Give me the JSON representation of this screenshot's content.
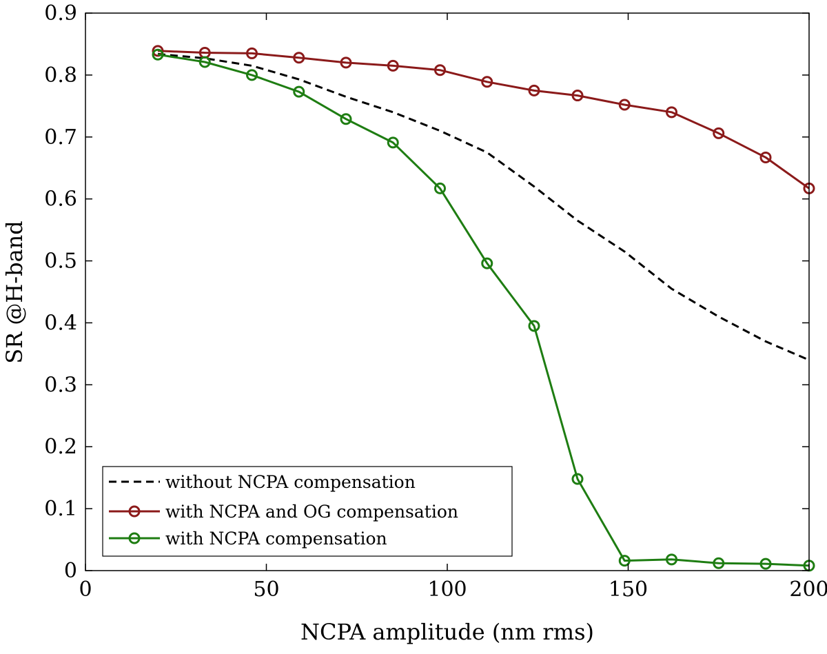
{
  "chart_data": {
    "type": "line",
    "title": "",
    "xlabel": "NCPA amplitude (nm rms)",
    "ylabel": "SR @H-band",
    "xlim": [
      0,
      200
    ],
    "ylim": [
      0,
      0.9
    ],
    "xticks": [
      0,
      50,
      100,
      150,
      200
    ],
    "yticks": [
      0,
      0.1,
      0.2,
      0.3,
      0.4,
      0.5,
      0.6,
      0.7,
      0.8,
      0.9
    ],
    "xtick_labels": [
      "0",
      "50",
      "100",
      "150",
      "200"
    ],
    "ytick_labels": [
      "0",
      "0.1",
      "0.2",
      "0.3",
      "0.4",
      "0.5",
      "0.6",
      "0.7",
      "0.8",
      "0.9"
    ],
    "grid": false,
    "legend_position": "bottom-left",
    "series": [
      {
        "name": "without NCPA compensation",
        "color": "#000000",
        "style": "dashed",
        "marker": "none",
        "x": [
          20,
          33,
          46,
          59,
          72,
          85,
          98,
          111,
          124,
          136,
          149,
          162,
          175,
          188,
          200
        ],
        "y": [
          0.834,
          0.827,
          0.815,
          0.793,
          0.765,
          0.74,
          0.71,
          0.675,
          0.62,
          0.565,
          0.515,
          0.455,
          0.41,
          0.37,
          0.34
        ]
      },
      {
        "name": "with NCPA and OG compensation",
        "color": "#8b1a1a",
        "style": "solid",
        "marker": "circle",
        "x": [
          20,
          33,
          46,
          59,
          72,
          85,
          98,
          111,
          124,
          136,
          149,
          162,
          175,
          188,
          200
        ],
        "y": [
          0.839,
          0.836,
          0.835,
          0.828,
          0.82,
          0.815,
          0.808,
          0.789,
          0.775,
          0.767,
          0.752,
          0.74,
          0.706,
          0.667,
          0.617
        ]
      },
      {
        "name": "with NCPA compensation",
        "color": "#1e7d12",
        "style": "solid",
        "marker": "circle",
        "x": [
          20,
          33,
          46,
          59,
          72,
          85,
          98,
          111,
          124,
          136,
          149,
          162,
          175,
          188,
          200
        ],
        "y": [
          0.833,
          0.821,
          0.8,
          0.773,
          0.729,
          0.691,
          0.617,
          0.496,
          0.395,
          0.148,
          0.016,
          0.018,
          0.012,
          0.011,
          0.008
        ]
      }
    ]
  }
}
